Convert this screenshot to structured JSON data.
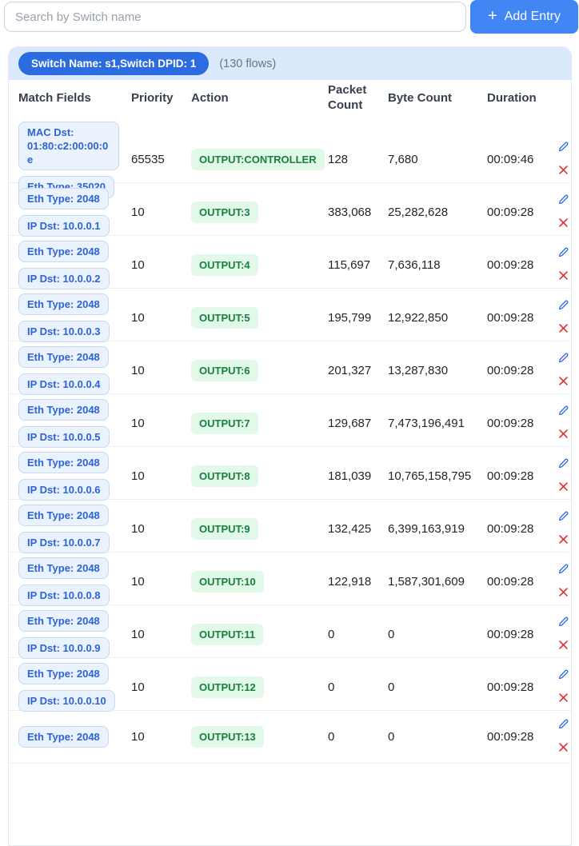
{
  "toolbar": {
    "search_placeholder": "Search by Switch name",
    "add_entry_icon": "+",
    "add_entry_label": "Add Entry"
  },
  "panel": {
    "switch_badge": "Switch Name: s1,Switch DPID: 1",
    "flows_count": "(130 flows)"
  },
  "table": {
    "headers": [
      "Match Fields",
      "Priority",
      "Action",
      "Packet Count",
      "Byte Count",
      "Duration"
    ],
    "rows": [
      {
        "match": [
          "MAC Dst: 01:80:c2:00:00:0e",
          "Eth Type: 35020"
        ],
        "priority": "65535",
        "action": "OUTPUT:CONTROLLER",
        "packets": "128",
        "bytes": "7,680",
        "duration": "00:09:46"
      },
      {
        "match": [
          "Eth Type: 2048",
          "IP Dst: 10.0.0.1"
        ],
        "priority": "10",
        "action": "OUTPUT:3",
        "packets": "383,068",
        "bytes": "25,282,628",
        "duration": "00:09:28"
      },
      {
        "match": [
          "Eth Type: 2048",
          "IP Dst: 10.0.0.2"
        ],
        "priority": "10",
        "action": "OUTPUT:4",
        "packets": "115,697",
        "bytes": "7,636,118",
        "duration": "00:09:28"
      },
      {
        "match": [
          "Eth Type: 2048",
          "IP Dst: 10.0.0.3"
        ],
        "priority": "10",
        "action": "OUTPUT:5",
        "packets": "195,799",
        "bytes": "12,922,850",
        "duration": "00:09:28"
      },
      {
        "match": [
          "Eth Type: 2048",
          "IP Dst: 10.0.0.4"
        ],
        "priority": "10",
        "action": "OUTPUT:6",
        "packets": "201,327",
        "bytes": "13,287,830",
        "duration": "00:09:28"
      },
      {
        "match": [
          "Eth Type: 2048",
          "IP Dst: 10.0.0.5"
        ],
        "priority": "10",
        "action": "OUTPUT:7",
        "packets": "129,687",
        "bytes": "7,473,196,491",
        "duration": "00:09:28"
      },
      {
        "match": [
          "Eth Type: 2048",
          "IP Dst: 10.0.0.6"
        ],
        "priority": "10",
        "action": "OUTPUT:8",
        "packets": "181,039",
        "bytes": "10,765,158,795",
        "duration": "00:09:28"
      },
      {
        "match": [
          "Eth Type: 2048",
          "IP Dst: 10.0.0.7"
        ],
        "priority": "10",
        "action": "OUTPUT:9",
        "packets": "132,425",
        "bytes": "6,399,163,919",
        "duration": "00:09:28"
      },
      {
        "match": [
          "Eth Type: 2048",
          "IP Dst: 10.0.0.8"
        ],
        "priority": "10",
        "action": "OUTPUT:10",
        "packets": "122,918",
        "bytes": "1,587,301,609",
        "duration": "00:09:28"
      },
      {
        "match": [
          "Eth Type: 2048",
          "IP Dst: 10.0.0.9"
        ],
        "priority": "10",
        "action": "OUTPUT:11",
        "packets": "0",
        "bytes": "0",
        "duration": "00:09:28"
      },
      {
        "match": [
          "Eth Type: 2048",
          "IP Dst: 10.0.0.10"
        ],
        "priority": "10",
        "action": "OUTPUT:12",
        "packets": "0",
        "bytes": "0",
        "duration": "00:09:28"
      },
      {
        "match": [
          "Eth Type: 2048"
        ],
        "priority": "10",
        "action": "OUTPUT:13",
        "packets": "0",
        "bytes": "0",
        "duration": "00:09:28"
      }
    ]
  },
  "colors": {
    "button_blue": "#4285f4",
    "pill_blue": "#2d6ce0",
    "panel_blue": "#dbe9fc",
    "badge_bg": "#eaf2fe",
    "badge_border": "#c8d9f2",
    "badge_text": "#2c63d5",
    "action_bg": "#e2f8e9",
    "action_text": "#17803d",
    "edit_blue": "#2563eb",
    "delete_red": "#e03131",
    "row_border": "#edeff2",
    "card_border": "#e4e9f0",
    "header_text": "#39404e",
    "text_dark": "#212529",
    "muted": "#6c757d"
  }
}
